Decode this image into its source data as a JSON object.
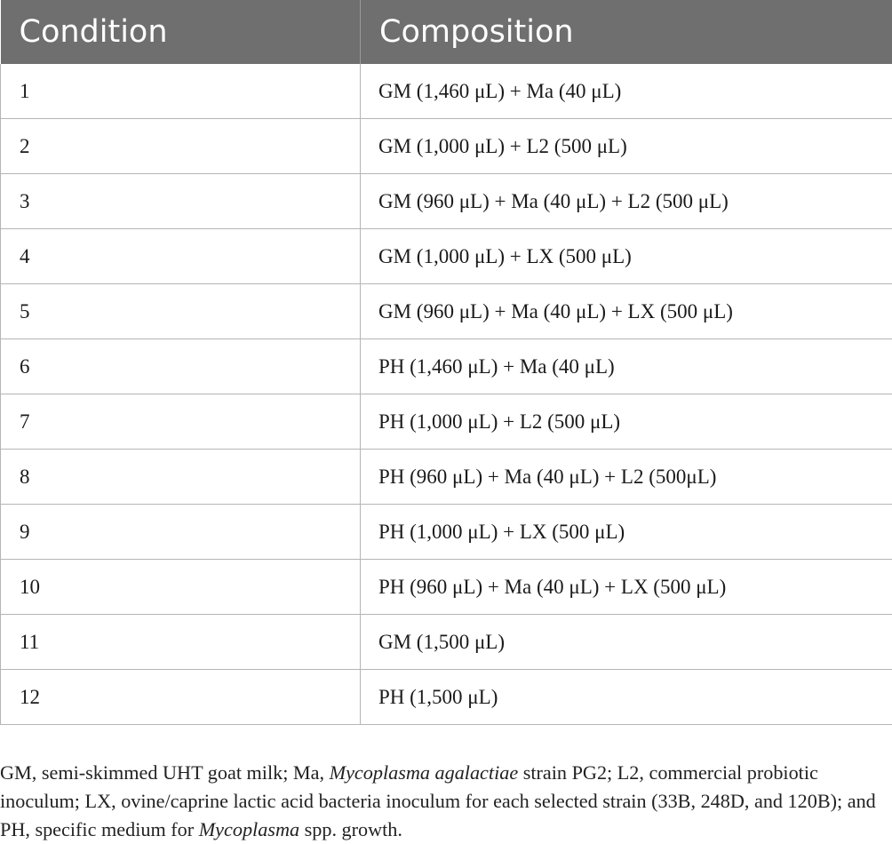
{
  "table": {
    "headers": [
      "Condition",
      "Composition"
    ],
    "rows": [
      {
        "condition": "1",
        "composition": "GM (1,460 μL) + Ma (40 μL)"
      },
      {
        "condition": "2",
        "composition": "GM (1,000 μL) + L2 (500 μL)"
      },
      {
        "condition": "3",
        "composition": "GM (960 μL) + Ma (40 μL) + L2 (500 μL)"
      },
      {
        "condition": "4",
        "composition": "GM (1,000 μL) + LX (500 μL)"
      },
      {
        "condition": "5",
        "composition": "GM (960 μL) + Ma (40 μL) + LX (500 μL)"
      },
      {
        "condition": "6",
        "composition": "PH (1,460 μL) + Ma (40 μL)"
      },
      {
        "condition": "7",
        "composition": "PH (1,000 μL) + L2 (500 μL)"
      },
      {
        "condition": "8",
        "composition": "PH (960 μL) + Ma (40 μL) + L2 (500μL)"
      },
      {
        "condition": "9",
        "composition": "PH (1,000 μL) + LX (500 μL)"
      },
      {
        "condition": "10",
        "composition": "PH (960 μL) + Ma (40 μL) + LX (500 μL)"
      },
      {
        "condition": "11",
        "composition": "GM (1,500 μL)"
      },
      {
        "condition": "12",
        "composition": "PH (1,500 μL)"
      }
    ]
  },
  "footnote": {
    "part1": "GM, semi-skimmed UHT goat milk; Ma, ",
    "italic1": "Mycoplasma agalactiae",
    "part2": " strain PG2; L2, commercial probiotic inoculum; LX, ovine/caprine lactic acid bacteria inoculum for each selected strain (33B, 248D, and 120B); and PH, specific medium for ",
    "italic2": "Mycoplasma",
    "part3": " spp. growth."
  },
  "colors": {
    "header_bg": "#6e6f6e",
    "header_text": "#ffffff",
    "grid_line": "#b5b5b5"
  }
}
